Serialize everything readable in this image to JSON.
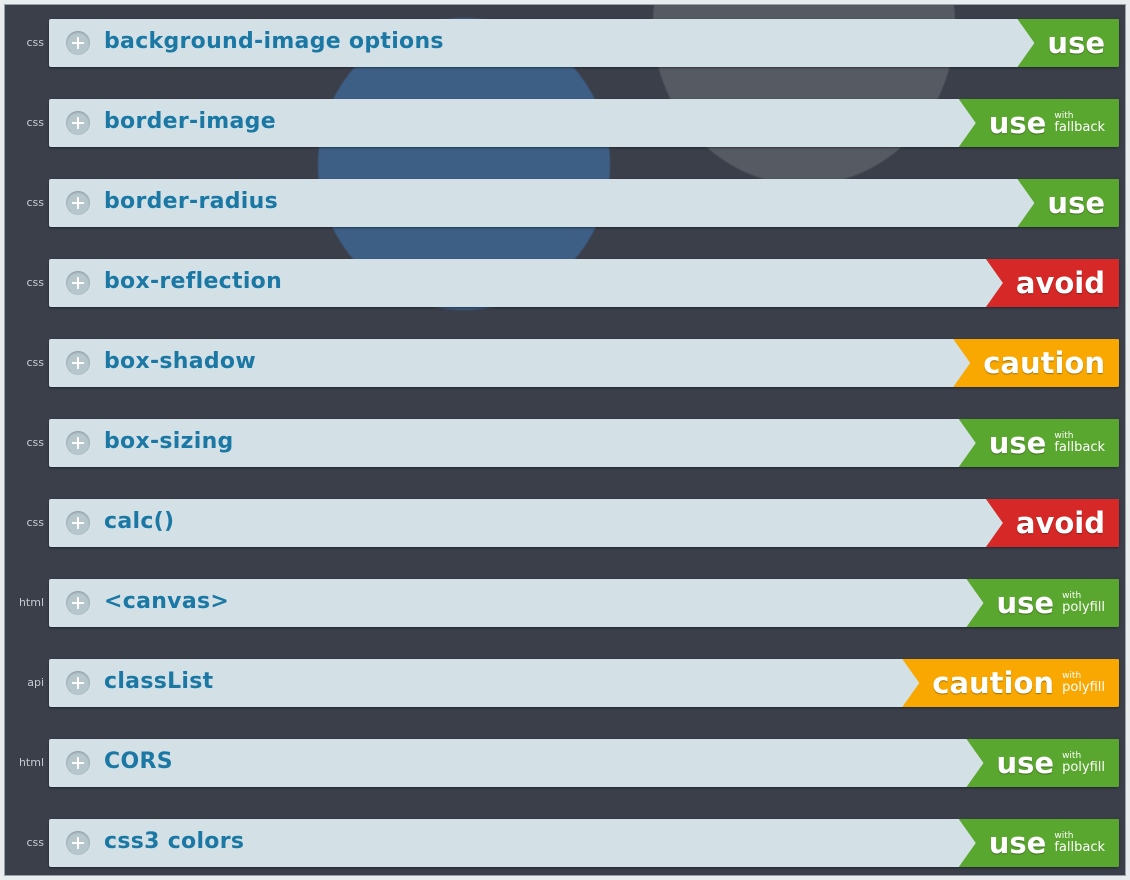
{
  "items": [
    {
      "type": "css",
      "name": "background-image options",
      "status": "use",
      "color": "#5aa72f"
    },
    {
      "type": "css",
      "name": "border-image",
      "status": "use",
      "note_top": "with",
      "note_bottom": "fallback",
      "color": "#5aa72f"
    },
    {
      "type": "css",
      "name": "border-radius",
      "status": "use",
      "color": "#5aa72f"
    },
    {
      "type": "css",
      "name": "box-reflection",
      "status": "avoid",
      "color": "#d62927"
    },
    {
      "type": "css",
      "name": "box-shadow",
      "status": "caution",
      "color": "#f8a800"
    },
    {
      "type": "css",
      "name": "box-sizing",
      "status": "use",
      "note_top": "with",
      "note_bottom": "fallback",
      "color": "#5aa72f"
    },
    {
      "type": "css",
      "name": "calc()",
      "status": "avoid",
      "color": "#d62927"
    },
    {
      "type": "html",
      "name": "<canvas>",
      "status": "use",
      "note_top": "with",
      "note_bottom": "polyfill",
      "color": "#5aa72f"
    },
    {
      "type": "api",
      "name": "classList",
      "status": "caution",
      "note_top": "with",
      "note_bottom": "polyfill",
      "color": "#f8a800"
    },
    {
      "type": "html",
      "name": "CORS",
      "status": "use",
      "note_top": "with",
      "note_bottom": "polyfill",
      "color": "#5aa72f"
    },
    {
      "type": "css",
      "name": "css3 colors",
      "status": "use",
      "note_top": "with",
      "note_bottom": "fallback",
      "color": "#5aa72f"
    }
  ]
}
